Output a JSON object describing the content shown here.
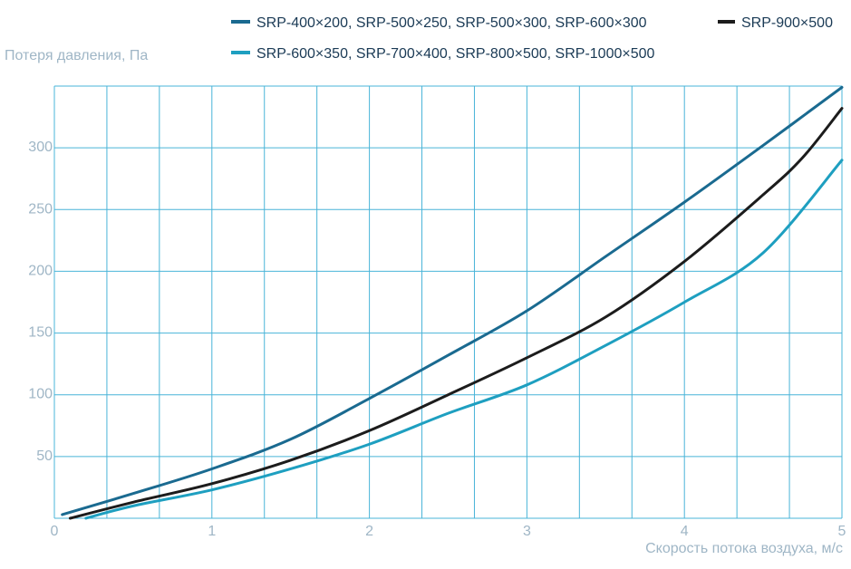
{
  "chart_data": {
    "type": "line",
    "title": "",
    "ylabel": "Потеря давления, Па",
    "xlabel": "Скорость потока воздуха, м/с",
    "xlim": [
      0,
      5
    ],
    "ylim": [
      0,
      350
    ],
    "x_ticks": [
      0,
      1,
      2,
      3,
      4,
      5
    ],
    "y_ticks": [
      50,
      100,
      150,
      200,
      250,
      300
    ],
    "grid": true,
    "legend_position": "top",
    "series": [
      {
        "name": "SRP-400×200, SRP-500×250, SRP-500×300, SRP-600×300",
        "color": "#1a6a90",
        "x": [
          0.05,
          0.5,
          1.0,
          1.5,
          2.0,
          2.5,
          3.0,
          3.5,
          4.0,
          4.5,
          5.0
        ],
        "y": [
          3,
          20,
          40,
          64,
          97,
          132,
          168,
          212,
          256,
          302,
          349
        ]
      },
      {
        "name": "SRP-900×500",
        "color": "#1c1c1c",
        "x": [
          0.1,
          0.5,
          1.0,
          1.5,
          2.0,
          2.5,
          3.0,
          3.5,
          4.0,
          4.5,
          4.75,
          5.0
        ],
        "y": [
          0,
          13,
          28,
          47,
          71,
          100,
          130,
          163,
          208,
          262,
          292,
          332
        ]
      },
      {
        "name": "SRP-600×350, SRP-700×400, SRP-800×500, SRP-1000×500",
        "color": "#1e9fc0",
        "x": [
          0.2,
          0.5,
          1.0,
          1.5,
          2.0,
          2.5,
          3.0,
          3.5,
          4.0,
          4.5,
          5.0
        ],
        "y": [
          0,
          10,
          23,
          40,
          60,
          85,
          108,
          140,
          175,
          215,
          290
        ]
      }
    ]
  }
}
